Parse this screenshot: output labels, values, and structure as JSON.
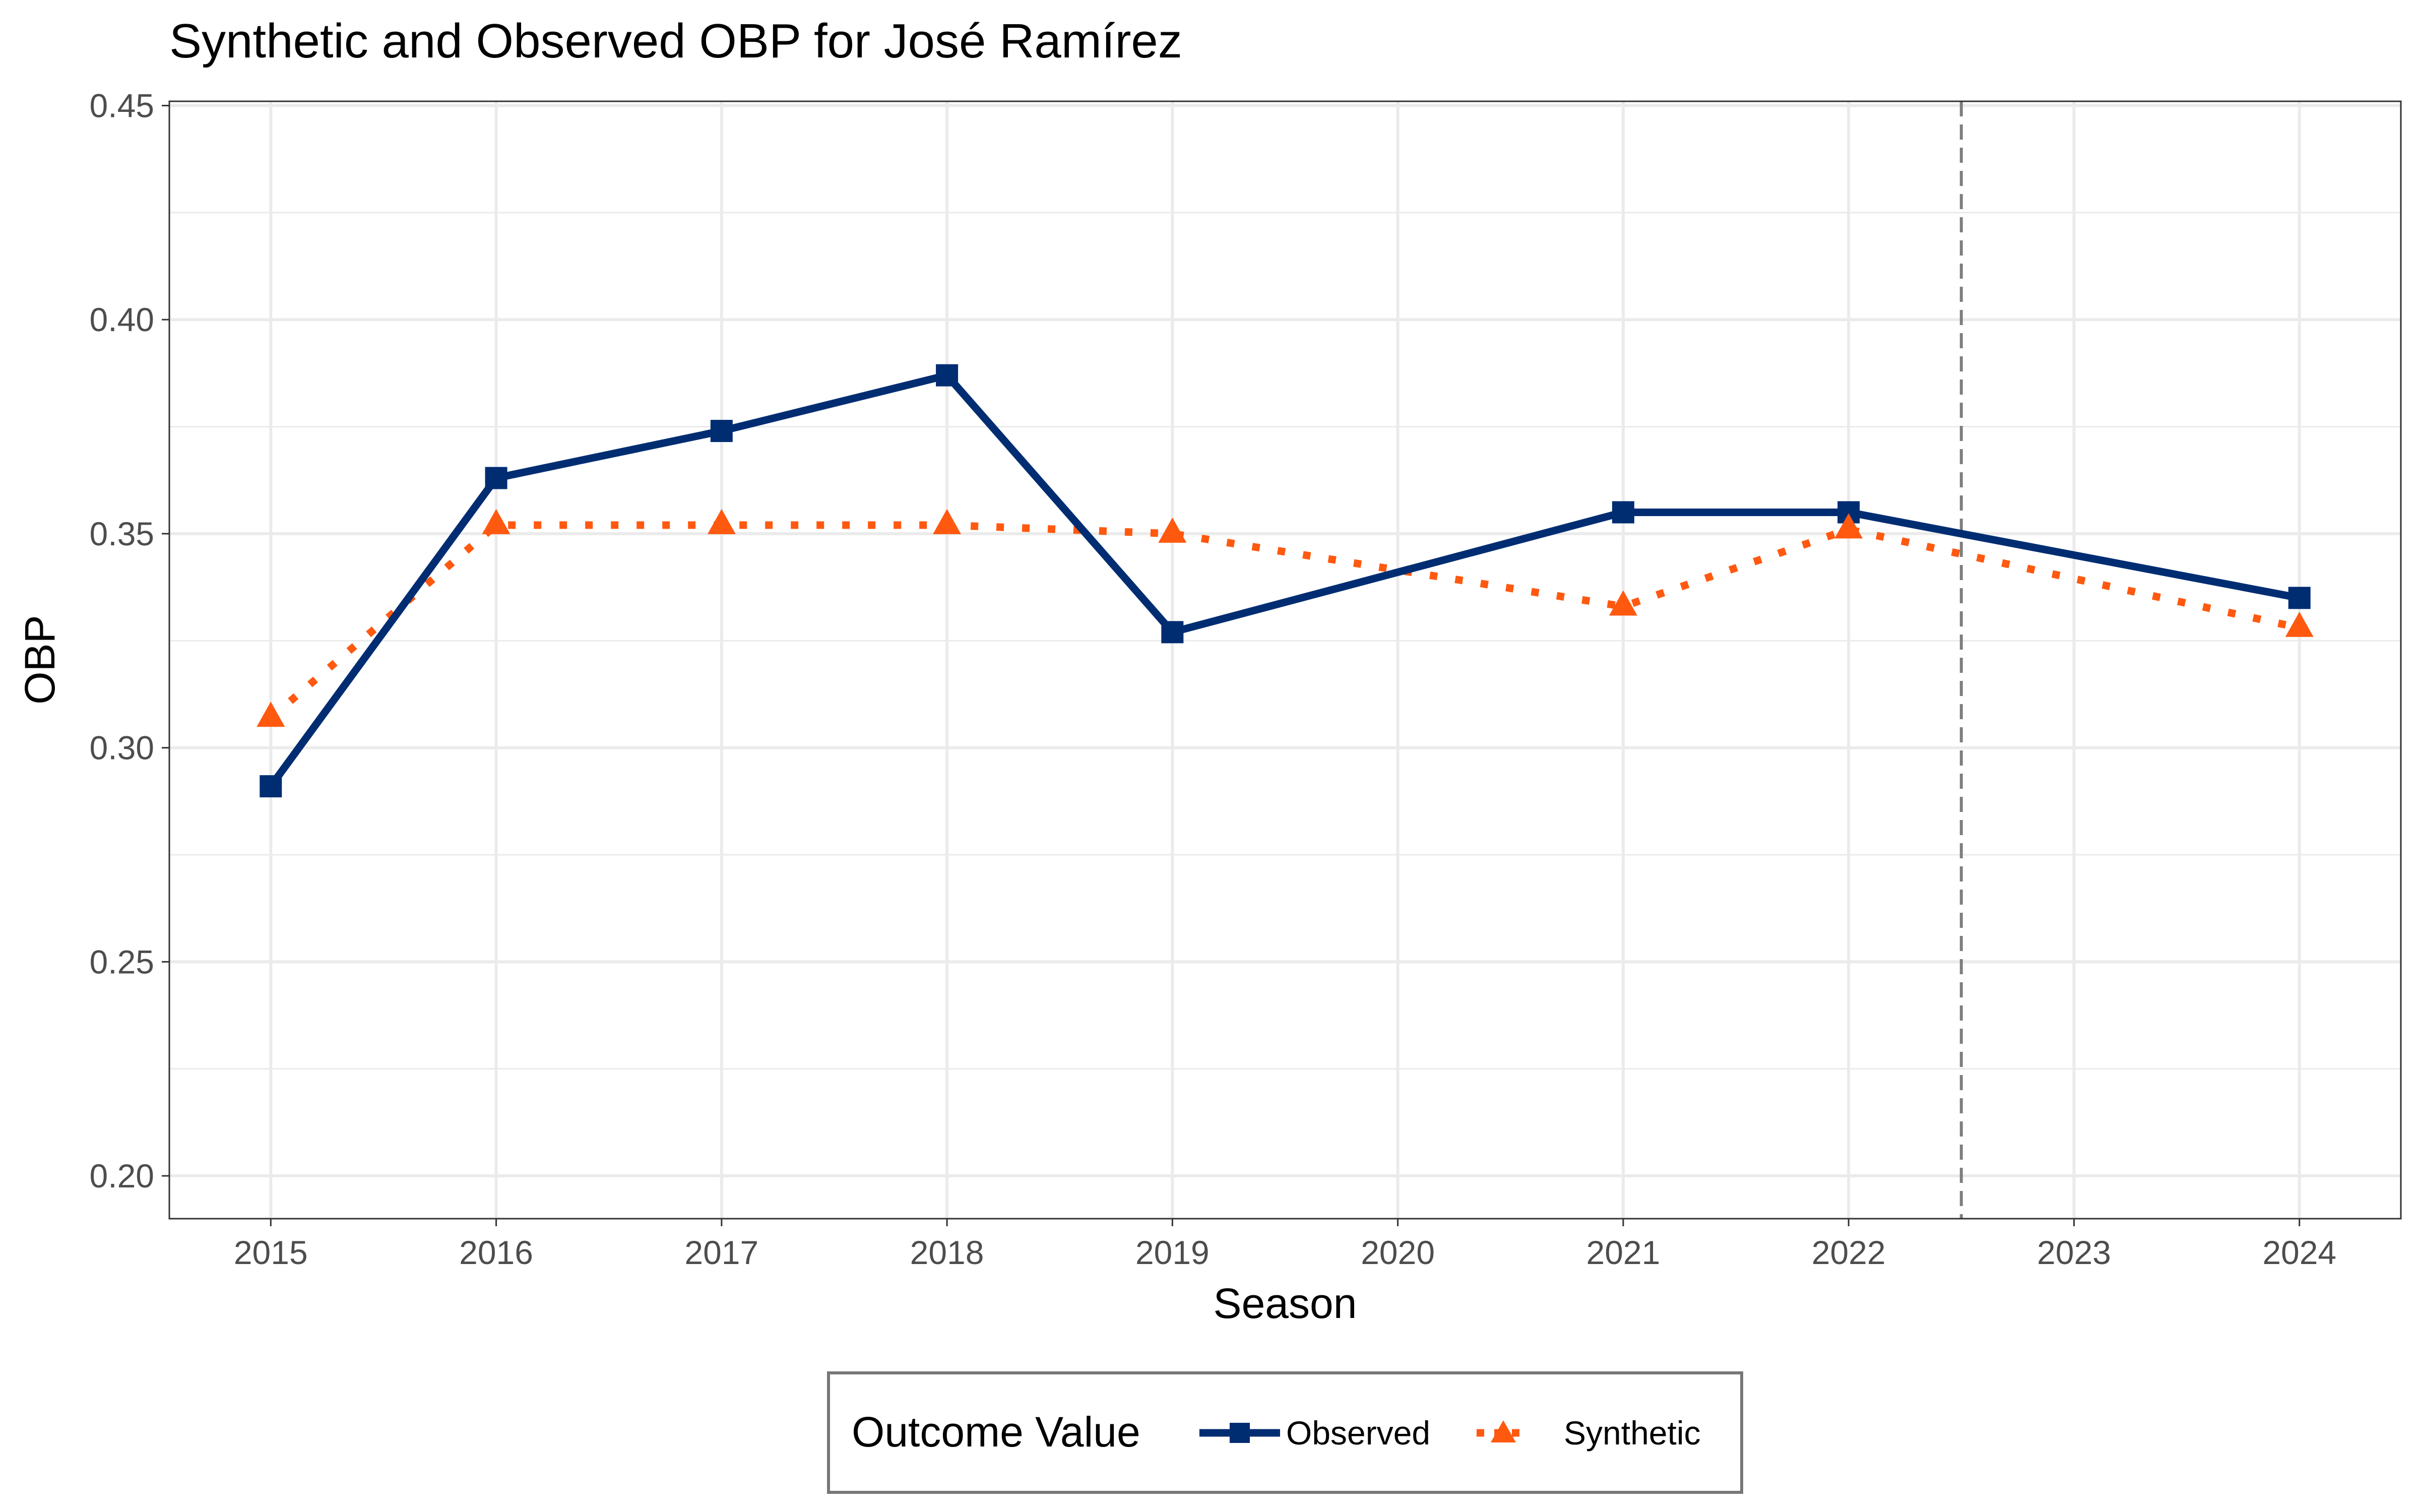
{
  "chart_data": {
    "type": "line",
    "title": "Synthetic and Observed OBP for José Ramírez",
    "xlabel": "Season",
    "ylabel": "OBP",
    "x": [
      2015,
      2016,
      2017,
      2018,
      2019,
      2020,
      2021,
      2022,
      2023,
      2024
    ],
    "xlim": [
      2014.55,
      2024.45
    ],
    "ylim": [
      0.19,
      0.451
    ],
    "yticks": [
      "0.20",
      "0.25",
      "0.30",
      "0.35",
      "0.40",
      "0.45"
    ],
    "ytick_values": [
      0.2,
      0.25,
      0.3,
      0.35,
      0.4,
      0.45
    ],
    "grid": true,
    "treatment_line_x": 2022.5,
    "series": [
      {
        "name": "Observed",
        "color": "#002d72",
        "marker": "square",
        "linestyle": "solid",
        "points": [
          {
            "x": 2015,
            "y": 0.291
          },
          {
            "x": 2016,
            "y": 0.363
          },
          {
            "x": 2017,
            "y": 0.374
          },
          {
            "x": 2018,
            "y": 0.387
          },
          {
            "x": 2019,
            "y": 0.327
          },
          {
            "x": 2021,
            "y": 0.355
          },
          {
            "x": 2022,
            "y": 0.355
          },
          {
            "x": 2024,
            "y": 0.335
          }
        ]
      },
      {
        "name": "Synthetic",
        "color": "#ff5910",
        "marker": "triangle",
        "linestyle": "dotted",
        "points": [
          {
            "x": 2015,
            "y": 0.307
          },
          {
            "x": 2016,
            "y": 0.352
          },
          {
            "x": 2017,
            "y": 0.352
          },
          {
            "x": 2018,
            "y": 0.352
          },
          {
            "x": 2019,
            "y": 0.35
          },
          {
            "x": 2021,
            "y": 0.333
          },
          {
            "x": 2022,
            "y": 0.351
          },
          {
            "x": 2024,
            "y": 0.328
          }
        ]
      }
    ],
    "legend": {
      "title": "Outcome Value",
      "position": "bottom"
    }
  },
  "colors": {
    "observed": "#002d72",
    "synthetic": "#ff5910",
    "grid": "#ebebeb",
    "treatment_line": "#7f7f7f"
  }
}
